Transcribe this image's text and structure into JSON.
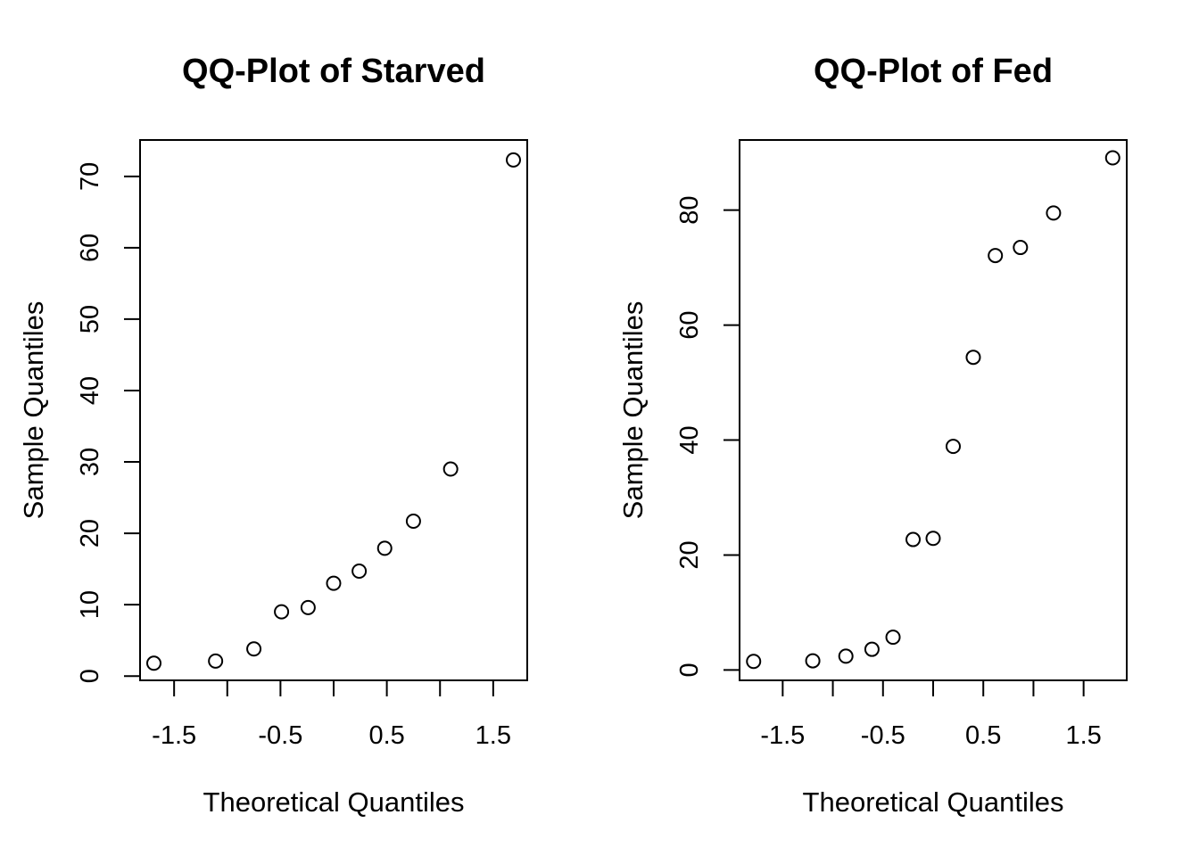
{
  "chart_data": [
    {
      "type": "scatter",
      "title": "QQ-Plot of Starved",
      "xlabel": "Theoretical Quantiles",
      "ylabel": "Sample Quantiles",
      "xlim": [
        -1.82,
        1.82
      ],
      "ylim": [
        -0.6,
        75.1
      ],
      "x_ticks": [
        -1.5,
        -1.0,
        -0.5,
        0.0,
        0.5,
        1.0,
        1.5
      ],
      "x_tick_labels": [
        "-1.5",
        "",
        "-0.5",
        "",
        "0.5",
        "",
        "1.5"
      ],
      "y_ticks": [
        0,
        10,
        20,
        30,
        40,
        50,
        60,
        70
      ],
      "y_tick_labels": [
        "0",
        "10",
        "20",
        "30",
        "40",
        "50",
        "60",
        "70"
      ],
      "series": [
        {
          "x": [
            -1.69,
            -1.11,
            -0.75,
            -0.49,
            -0.24,
            0.0,
            0.24,
            0.48,
            0.75,
            1.1,
            1.69
          ],
          "y": [
            1.8,
            2.1,
            3.8,
            9.0,
            9.6,
            13.0,
            14.7,
            17.9,
            21.7,
            29.0,
            72.3
          ]
        }
      ],
      "grid": false,
      "legend": "none"
    },
    {
      "type": "scatter",
      "title": "QQ-Plot of Fed",
      "xlabel": "Theoretical Quantiles",
      "ylabel": "Sample Quantiles",
      "xlim": [
        -1.93,
        1.93
      ],
      "ylim": [
        -1.8,
        92.2
      ],
      "x_ticks": [
        -1.5,
        -1.0,
        -0.5,
        0.0,
        0.5,
        1.0,
        1.5
      ],
      "x_tick_labels": [
        "-1.5",
        "",
        "-0.5",
        "",
        "0.5",
        "",
        "1.5"
      ],
      "y_ticks": [
        0,
        20,
        40,
        60,
        80
      ],
      "y_tick_labels": [
        "0",
        "20",
        "40",
        "60",
        "80"
      ],
      "series": [
        {
          "x": [
            -1.79,
            -1.2,
            -0.87,
            -0.61,
            -0.4,
            -0.2,
            0.0,
            0.2,
            0.4,
            0.62,
            0.87,
            1.2,
            1.79
          ],
          "y": [
            1.5,
            1.6,
            2.4,
            3.6,
            5.7,
            22.7,
            22.9,
            38.9,
            54.4,
            72.1,
            73.5,
            79.5,
            89.1
          ]
        }
      ],
      "grid": false,
      "legend": "none"
    }
  ]
}
